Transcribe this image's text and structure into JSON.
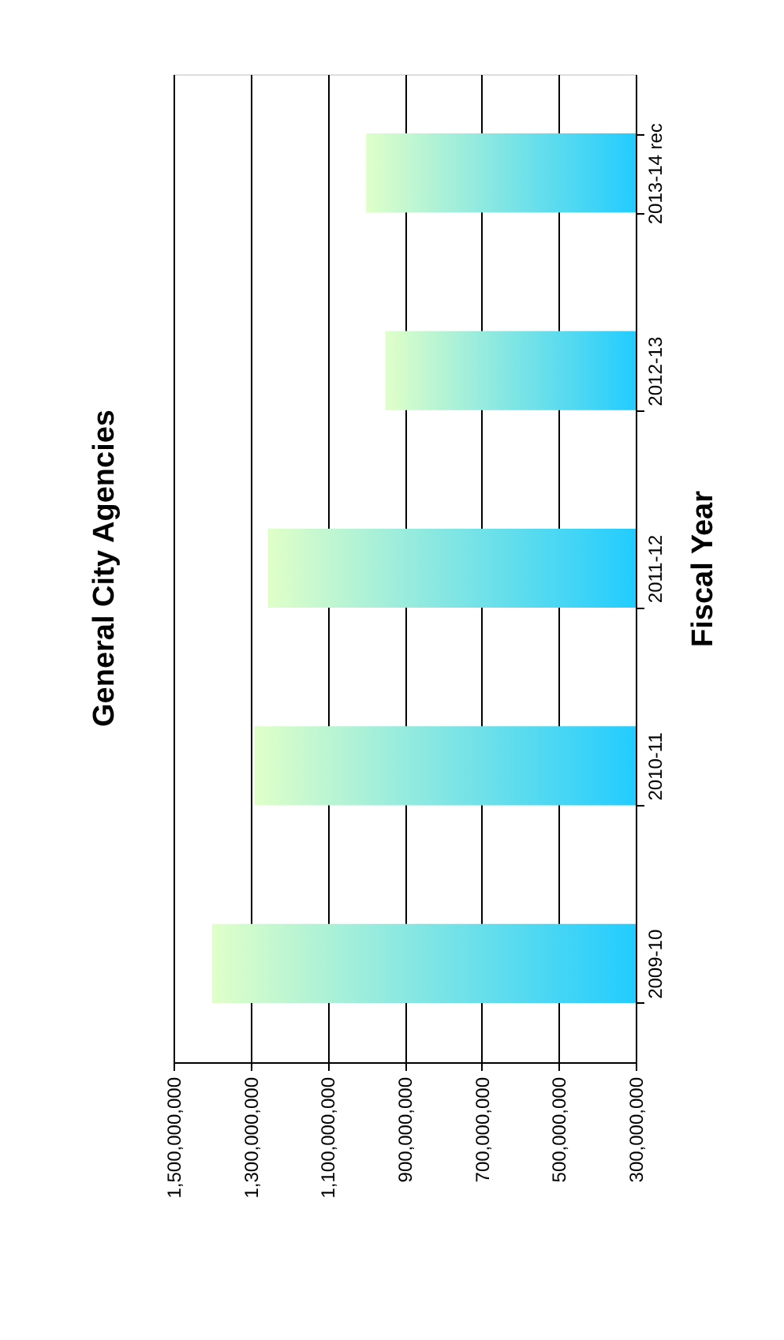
{
  "chart_data": {
    "type": "bar",
    "orientation": "horizontal",
    "title": "General City Agencies",
    "ylabel": "Fiscal Year",
    "categories": [
      "2013-14 rec",
      "2012-13",
      "2011-12",
      "2010-11",
      "2009-10"
    ],
    "values": [
      1000000000,
      950000000,
      1255000000,
      1290000000,
      1400000000
    ],
    "color": "#22ccff",
    "xlim": [
      1500000000,
      300000000
    ],
    "xticks": [
      {
        "value": 300000000,
        "label": "300,000,000"
      },
      {
        "value": 500000000,
        "label": "500,000,000"
      },
      {
        "value": 700000000,
        "label": "700,000,000"
      },
      {
        "value": 900000000,
        "label": "900,000,000"
      },
      {
        "value": 1100000000,
        "label": "1,100,000,000"
      },
      {
        "value": 1300000000,
        "label": "1,300,000,000"
      },
      {
        "value": 1500000000,
        "label": "1,500,000,000"
      }
    ],
    "grid": "x"
  }
}
